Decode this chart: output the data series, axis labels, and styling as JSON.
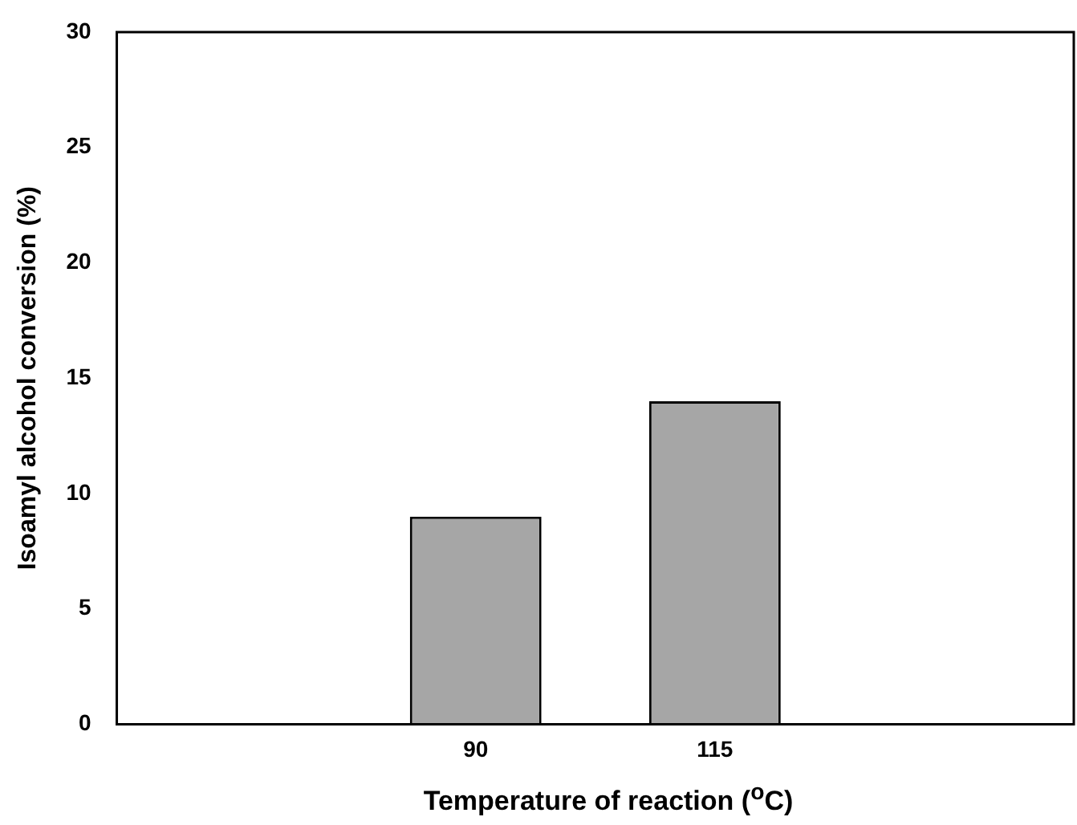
{
  "chart_data": {
    "type": "bar",
    "xlabel": "Temperature of reaction ($^{o}$C)",
    "ylabel": "Isoamyl alcohol conversion (%)",
    "categories": [
      null,
      "90",
      "115",
      null
    ],
    "values": [
      null,
      9,
      14,
      null
    ],
    "color": "#a6a6a6",
    "ylim": [
      0,
      30
    ],
    "yticks": [
      0,
      5,
      10,
      15,
      20,
      25,
      30
    ],
    "grid": false,
    "legend": false
  }
}
